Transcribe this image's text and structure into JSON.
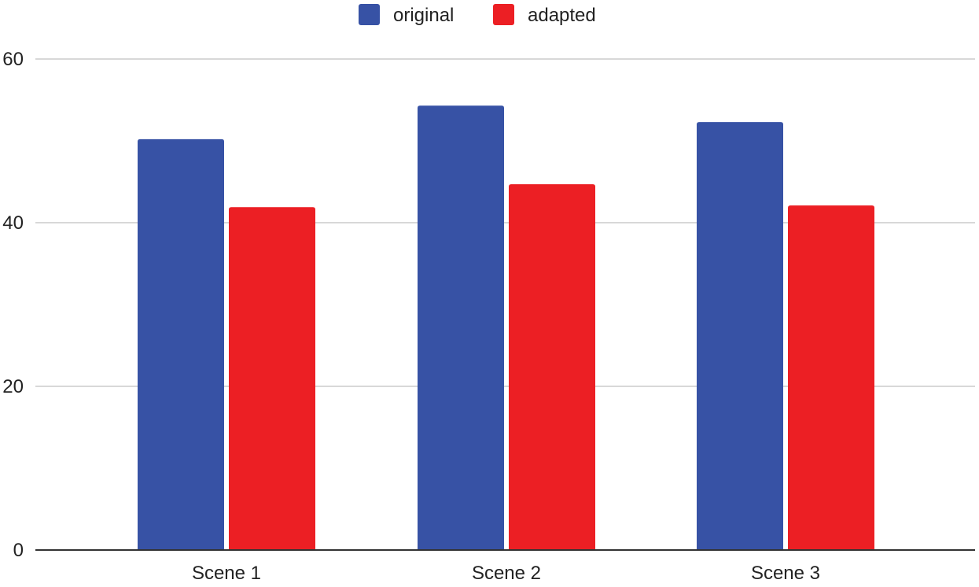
{
  "chart_data": {
    "type": "bar",
    "categories": [
      "Scene 1",
      "Scene 2",
      "Scene 3"
    ],
    "series": [
      {
        "name": "original",
        "color": "#3752A5",
        "values": [
          50.2,
          54.3,
          52.3
        ]
      },
      {
        "name": "adapted",
        "color": "#EC1F24",
        "values": [
          41.9,
          44.7,
          42.1
        ]
      }
    ],
    "ylim": [
      0,
      60
    ],
    "yticks": [
      0,
      20,
      40,
      60
    ],
    "grid": true,
    "legend_position": "top-center",
    "title": "",
    "xlabel": "",
    "ylabel": ""
  }
}
